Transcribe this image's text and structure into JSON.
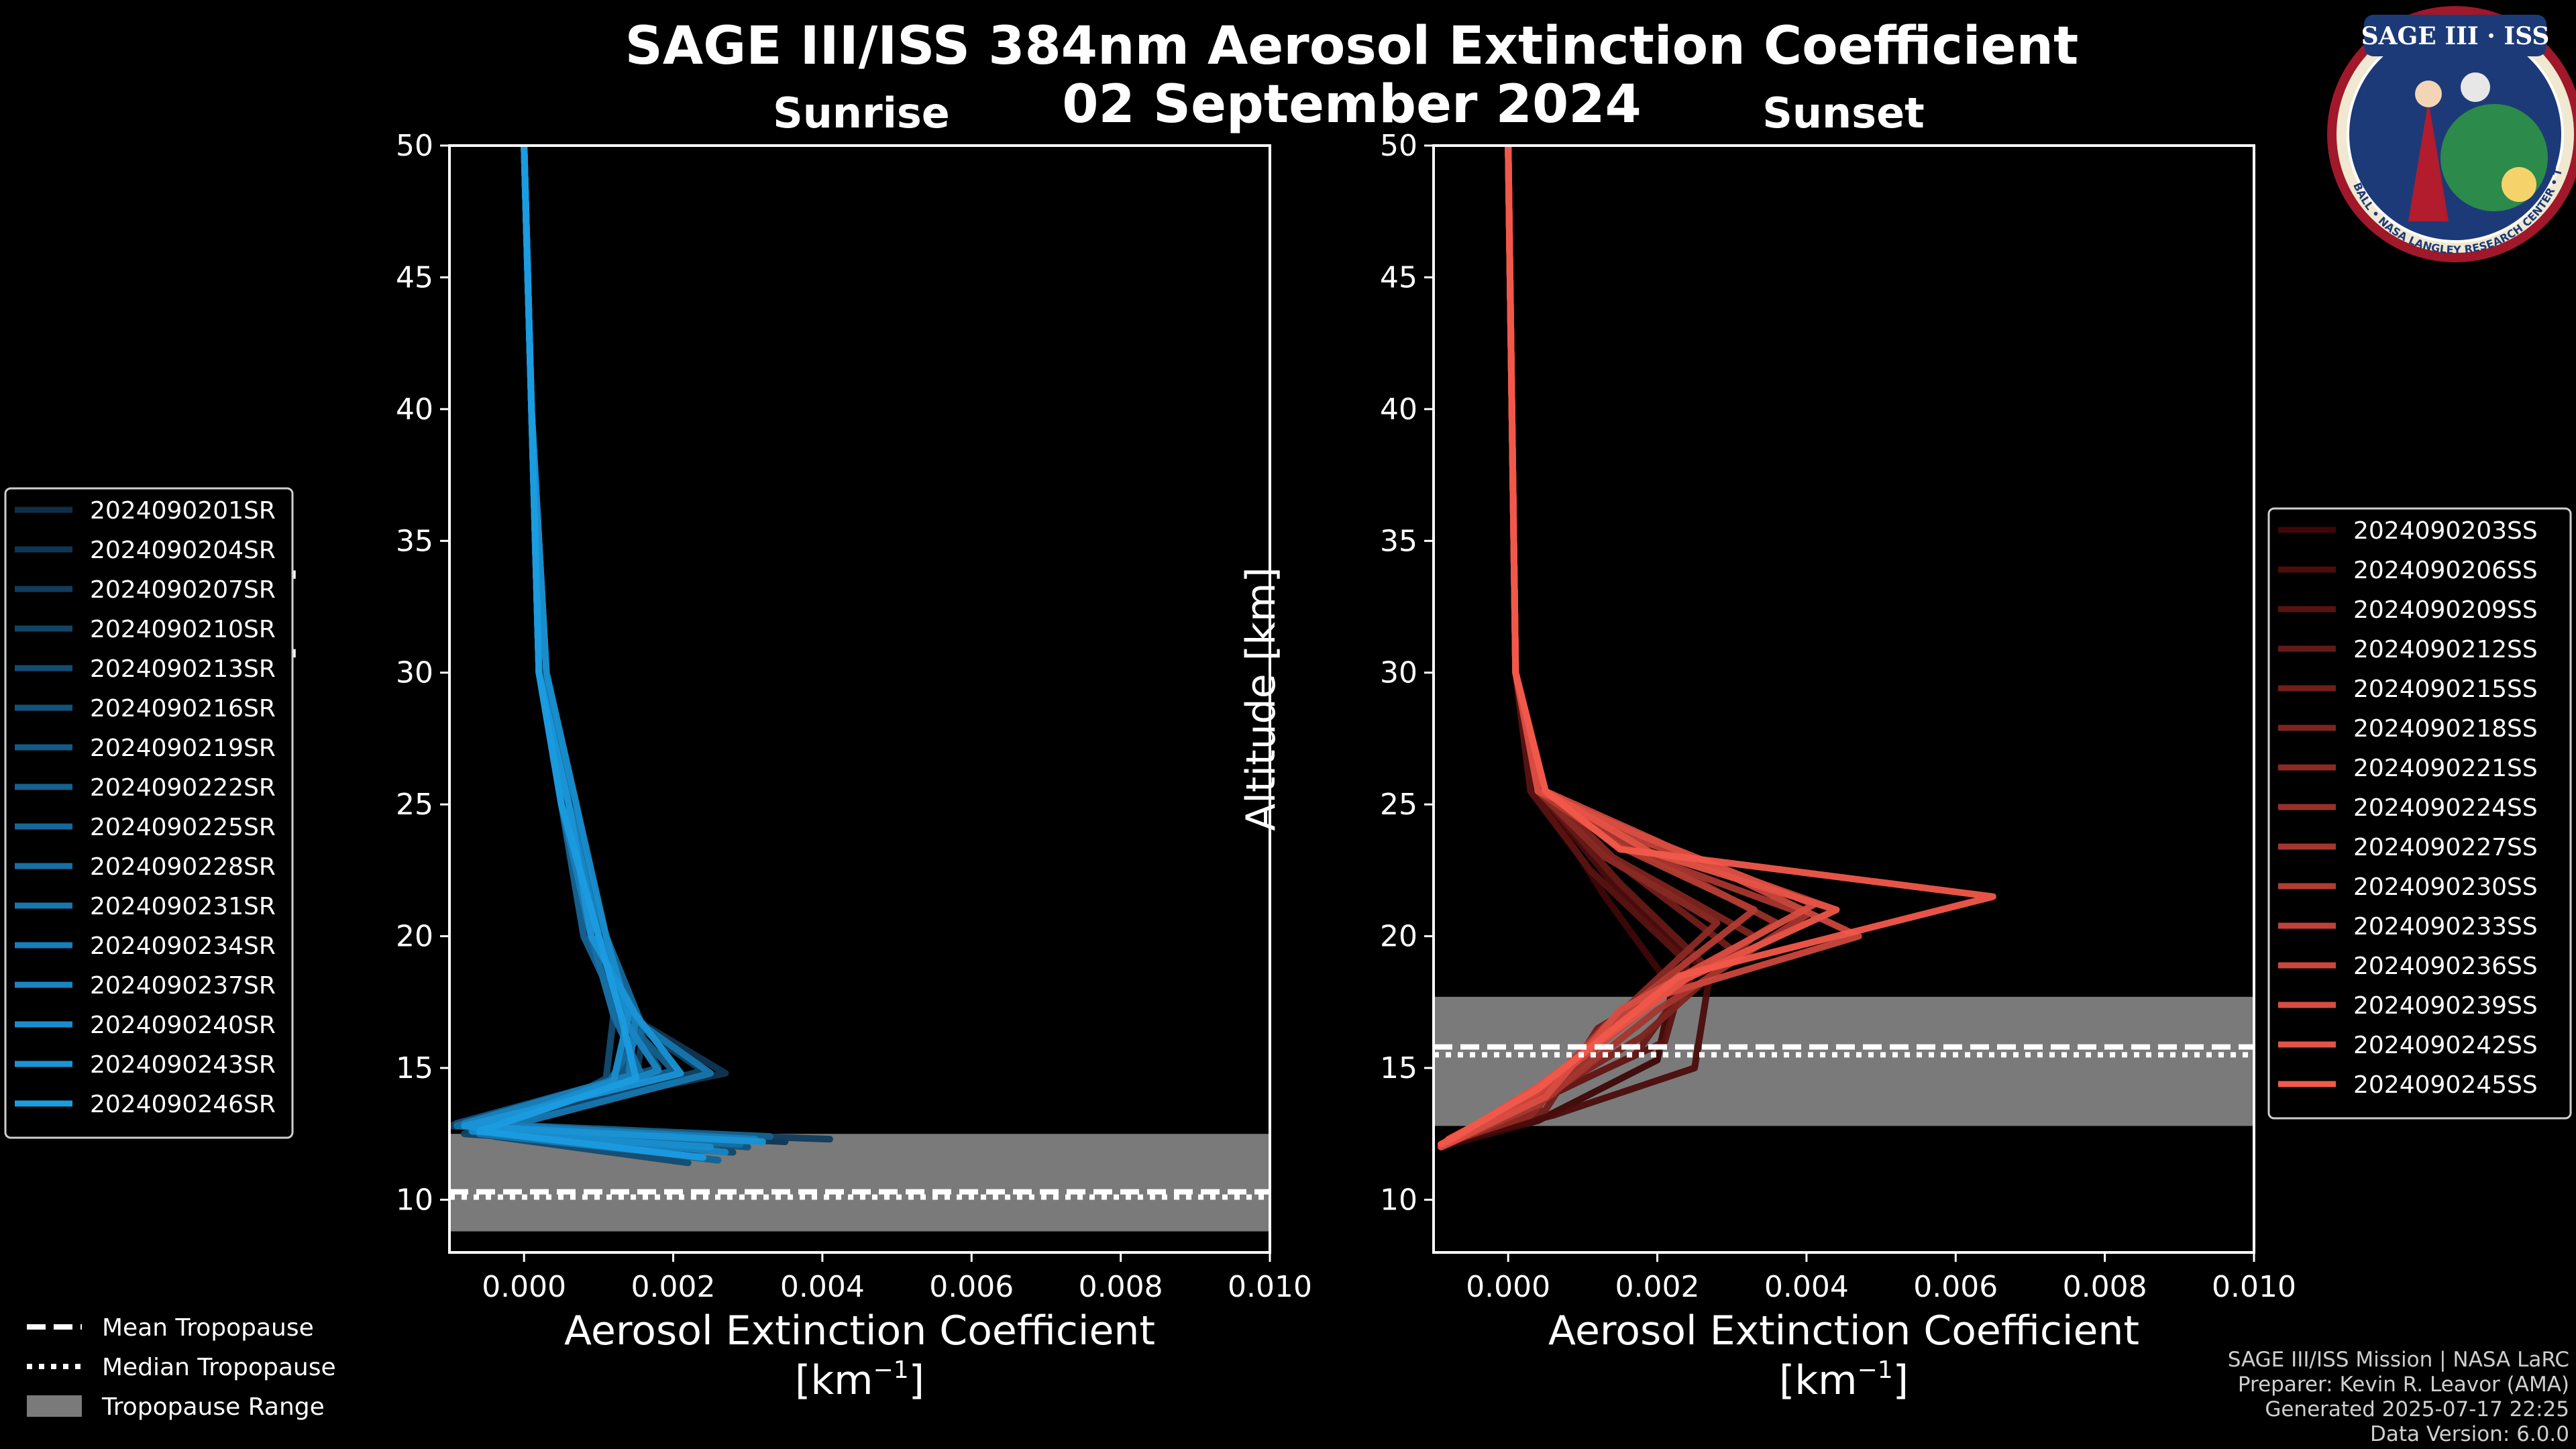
{
  "figure": {
    "title_line1": "SAGE III/ISS 384nm Aerosol Extinction Coefficient",
    "title_line2": "02 September 2024",
    "logo": {
      "top_text": "SAGE III · ISS",
      "ring_text": "BALL • NASA LANGLEY RESEARCH CENTER • TAS-I • ESA",
      "icon": "sage-iii-iss-mission-patch"
    },
    "credits": [
      "SAGE III/ISS Mission | NASA LaRC",
      "Preparer: Kevin R. Leavor (AMA)",
      "Generated 2025-07-17 22:25",
      "Data Version: 6.0.0"
    ],
    "tropopause_legend": [
      {
        "label": "Mean Tropopause",
        "style": "dashed"
      },
      {
        "label": "Median Tropopause",
        "style": "dotted"
      },
      {
        "label": "Tropopause Range",
        "style": "patch"
      }
    ]
  },
  "chart_data": [
    {
      "type": "line",
      "title": "Sunrise",
      "xlabel": "Aerosol Extinction Coefficient",
      "xunit": "[km",
      "xunit_exp": "−1",
      "xunit_close": "]",
      "ylabel": "Altitude [km]",
      "xlim": [
        -0.001,
        0.01
      ],
      "ylim": [
        8,
        50
      ],
      "xticks": [
        0.0,
        0.002,
        0.004,
        0.006,
        0.008,
        0.01
      ],
      "xtick_labels": [
        "0.000",
        "0.002",
        "0.004",
        "0.006",
        "0.008",
        "0.010"
      ],
      "yticks": [
        10,
        15,
        20,
        25,
        30,
        35,
        40,
        45,
        50
      ],
      "tropopause": {
        "min": 8.8,
        "max": 12.5,
        "mean": 10.3,
        "median": 10.1,
        "fill": "#7a7a7a"
      },
      "color_start": "#0f2f49",
      "color_end": "#1b9be0",
      "series": [
        {
          "name": "2024090201SR",
          "x": [
            0.0026,
            -0.0006,
            0.0012,
            0.0014,
            0.0009,
            0.0005,
            0.0002,
            0.0001,
            0.0
          ],
          "y": [
            11.5,
            12.6,
            14.5,
            17,
            20,
            25,
            30,
            40,
            50
          ]
        },
        {
          "name": "2024090204SR",
          "x": [
            0.0035,
            -0.0008,
            0.0027,
            0.0014,
            0.0009,
            0.0006,
            0.0002,
            0.0001,
            0.0
          ],
          "y": [
            12.2,
            12.8,
            14.8,
            17,
            20,
            25,
            30,
            40,
            50
          ]
        },
        {
          "name": "2024090207SR",
          "x": [
            0.0041,
            -0.001,
            0.0015,
            0.0016,
            0.001,
            0.0006,
            0.0002,
            0.0001,
            0.0
          ],
          "y": [
            12.3,
            12.8,
            14.5,
            16.5,
            20,
            25,
            30,
            40,
            50
          ]
        },
        {
          "name": "2024090210SR",
          "x": [
            0.0028,
            -0.0008,
            0.0024,
            0.0013,
            0.0008,
            0.0005,
            0.0002,
            0.0001,
            0.0
          ],
          "y": [
            11.8,
            12.5,
            14.9,
            17,
            20,
            25,
            30,
            40,
            50
          ]
        },
        {
          "name": "2024090213SR",
          "x": [
            0.0022,
            -0.0004,
            0.0011,
            0.0012,
            0.0009,
            0.0006,
            0.0002,
            0.0001,
            0.0
          ],
          "y": [
            11.4,
            12.4,
            14.6,
            17,
            20,
            25,
            30,
            40,
            50
          ]
        },
        {
          "name": "2024090216SR",
          "x": [
            0.003,
            -0.0009,
            0.0018,
            0.0014,
            0.001,
            0.0007,
            0.0003,
            0.0001,
            0.0
          ],
          "y": [
            12.0,
            12.9,
            15.0,
            17,
            20,
            25,
            30,
            40,
            50
          ]
        },
        {
          "name": "2024090219SR",
          "x": [
            0.0024,
            -0.0006,
            0.0013,
            0.0015,
            0.0009,
            0.0005,
            0.0002,
            0.0001,
            0.0
          ],
          "y": [
            11.6,
            12.7,
            14.7,
            17,
            20,
            25,
            30,
            40,
            50
          ]
        },
        {
          "name": "2024090222SR",
          "x": [
            0.0033,
            -0.0007,
            0.002,
            0.0013,
            0.0008,
            0.0005,
            0.0002,
            0.0001,
            0.0
          ],
          "y": [
            12.4,
            12.9,
            14.9,
            17,
            20,
            25,
            30,
            40,
            50
          ]
        },
        {
          "name": "2024090225SR",
          "x": [
            0.0026,
            -0.0005,
            0.0011,
            0.0016,
            0.0011,
            0.0006,
            0.0002,
            0.0001,
            0.0
          ],
          "y": [
            11.5,
            12.6,
            14.3,
            16.5,
            20,
            25,
            30,
            40,
            50
          ]
        },
        {
          "name": "2024090228SR",
          "x": [
            0.0029,
            -0.0009,
            0.0016,
            0.0012,
            0.0009,
            0.0006,
            0.0003,
            0.0001,
            0.0
          ],
          "y": [
            12.1,
            12.8,
            14.6,
            17,
            20,
            25,
            30,
            40,
            50
          ]
        },
        {
          "name": "2024090231SR",
          "x": [
            0.0021,
            -0.0006,
            0.0025,
            0.0014,
            0.001,
            0.0006,
            0.0002,
            0.0001,
            0.0
          ],
          "y": [
            11.7,
            12.5,
            14.8,
            17,
            20,
            25,
            30,
            40,
            50
          ]
        },
        {
          "name": "2024090234SR",
          "x": [
            0.0031,
            -0.0008,
            0.0014,
            0.0015,
            0.0009,
            0.0005,
            0.0002,
            0.0001,
            0.0
          ],
          "y": [
            12.3,
            12.9,
            14.7,
            17,
            20,
            25,
            30,
            40,
            50
          ]
        },
        {
          "name": "2024090237SR",
          "x": [
            0.0027,
            -0.0005,
            0.0018,
            0.0013,
            0.001,
            0.0006,
            0.0002,
            0.0001,
            0.0
          ],
          "y": [
            11.8,
            12.7,
            14.9,
            17,
            20,
            25,
            30,
            40,
            50
          ]
        },
        {
          "name": "2024090240SR",
          "x": [
            0.0025,
            -0.0007,
            0.0012,
            0.0014,
            0.0011,
            0.0007,
            0.0003,
            0.0001,
            0.0
          ],
          "y": [
            12.0,
            12.6,
            14.5,
            17,
            20,
            25,
            30,
            40,
            50
          ]
        },
        {
          "name": "2024090243SR",
          "x": [
            0.0032,
            -0.0008,
            0.0021,
            0.0015,
            0.0009,
            0.0006,
            0.0002,
            0.0001,
            0.0
          ],
          "y": [
            12.2,
            12.8,
            14.8,
            17,
            20,
            25,
            30,
            40,
            50
          ]
        },
        {
          "name": "2024090246SR",
          "x": [
            0.0024,
            -0.0006,
            0.0015,
            0.0013,
            0.001,
            0.0005,
            0.0002,
            0.0001,
            0.0
          ],
          "y": [
            11.6,
            12.6,
            14.6,
            17,
            20,
            25,
            30,
            40,
            50
          ]
        }
      ]
    },
    {
      "type": "line",
      "title": "Sunset",
      "xlabel": "Aerosol Extinction Coefficient",
      "xunit": "[km",
      "xunit_exp": "−1",
      "xunit_close": "]",
      "ylabel": "Altitude [km]",
      "xlim": [
        -0.001,
        0.01
      ],
      "ylim": [
        8,
        50
      ],
      "xticks": [
        0.0,
        0.002,
        0.004,
        0.006,
        0.008,
        0.01
      ],
      "xtick_labels": [
        "0.000",
        "0.002",
        "0.004",
        "0.006",
        "0.008",
        "0.010"
      ],
      "yticks": [
        10,
        15,
        20,
        25,
        30,
        35,
        40,
        45,
        50
      ],
      "tropopause": {
        "min": 12.8,
        "max": 17.7,
        "mean": 15.8,
        "median": 15.5,
        "fill": "#7a7a7a"
      },
      "color_start": "#3e0707",
      "color_end": "#f2594b",
      "series": [
        {
          "name": "2024090203SS",
          "x": [
            -0.0009,
            0.0004,
            0.002,
            0.0022,
            0.0013,
            0.0004,
            0.0001,
            0.0
          ],
          "y": [
            12.0,
            13.0,
            15.3,
            18.0,
            21.5,
            25.5,
            30,
            50
          ]
        },
        {
          "name": "2024090206SS",
          "x": [
            -0.0008,
            0.0006,
            0.0025,
            0.0027,
            0.0014,
            0.0004,
            0.0001,
            0.0
          ],
          "y": [
            12.2,
            13.2,
            15.0,
            18.5,
            22.0,
            25.5,
            30,
            50
          ]
        },
        {
          "name": "2024090209SS",
          "x": [
            -0.0009,
            0.0002,
            0.0021,
            0.0024,
            0.0011,
            0.0003,
            0.0001,
            0.0
          ],
          "y": [
            12.0,
            13.5,
            16.0,
            19.0,
            22.5,
            25.5,
            30,
            50
          ]
        },
        {
          "name": "2024090212SS",
          "x": [
            -0.0008,
            0.0003,
            0.0017,
            0.0026,
            0.0015,
            0.0004,
            0.0001,
            0.0
          ],
          "y": [
            12.3,
            13.6,
            15.5,
            19.0,
            22.0,
            25.5,
            30,
            50
          ]
        },
        {
          "name": "2024090215SS",
          "x": [
            -0.0009,
            0.0005,
            0.0012,
            0.003,
            0.0016,
            0.0004,
            0.0001,
            0.0
          ],
          "y": [
            12.1,
            13.4,
            16.5,
            19.5,
            22.5,
            25.5,
            30,
            50
          ]
        },
        {
          "name": "2024090218SS",
          "x": [
            -0.0007,
            0.0004,
            0.0018,
            0.0033,
            0.0014,
            0.0005,
            0.0001,
            0.0
          ],
          "y": [
            12.4,
            13.8,
            16.2,
            20.0,
            23.0,
            25.5,
            30,
            50
          ]
        },
        {
          "name": "2024090221SS",
          "x": [
            -0.0009,
            0.0003,
            0.0014,
            0.0028,
            0.0013,
            0.0004,
            0.0001,
            0.0
          ],
          "y": [
            12.1,
            13.2,
            16.8,
            20.5,
            23.0,
            25.5,
            30,
            50
          ]
        },
        {
          "name": "2024090224SS",
          "x": [
            -0.0008,
            0.0006,
            0.0016,
            0.0036,
            0.0018,
            0.0005,
            0.0001,
            0.0
          ],
          "y": [
            12.3,
            14.0,
            17.0,
            20.5,
            23.2,
            25.5,
            30,
            50
          ]
        },
        {
          "name": "2024090227SS",
          "x": [
            -0.0009,
            0.0004,
            0.002,
            0.004,
            0.0017,
            0.0005,
            0.0001,
            0.0
          ],
          "y": [
            12.0,
            13.6,
            17.2,
            20.8,
            23.2,
            25.5,
            30,
            50
          ]
        },
        {
          "name": "2024090230SS",
          "x": [
            -0.0008,
            0.0005,
            0.0013,
            0.0033,
            0.0015,
            0.0004,
            0.0001,
            0.0
          ],
          "y": [
            12.2,
            14.2,
            16.6,
            21.0,
            23.4,
            25.5,
            30,
            50
          ]
        },
        {
          "name": "2024090233SS",
          "x": [
            -0.0009,
            0.0003,
            0.0017,
            0.0044,
            0.0019,
            0.0005,
            0.0001,
            0.0
          ],
          "y": [
            12.1,
            13.7,
            17.5,
            21.0,
            23.5,
            25.5,
            30,
            50
          ]
        },
        {
          "name": "2024090236SS",
          "x": [
            -0.0008,
            0.0004,
            0.0021,
            0.0047,
            0.002,
            0.0005,
            0.0001,
            0.0
          ],
          "y": [
            12.3,
            14.1,
            17.8,
            20.0,
            23.6,
            25.5,
            30,
            50
          ]
        },
        {
          "name": "2024090239SS",
          "x": [
            -0.0009,
            0.0005,
            0.0015,
            0.0041,
            0.0018,
            0.0004,
            0.0001,
            0.0
          ],
          "y": [
            12.0,
            13.9,
            17.2,
            21.2,
            23.8,
            25.5,
            30,
            50
          ]
        },
        {
          "name": "2024090242SS",
          "x": [
            -0.0008,
            0.0004,
            0.0024,
            0.0044,
            0.0019,
            0.0005,
            0.0001,
            0.0
          ],
          "y": [
            12.2,
            14.3,
            18.4,
            21.0,
            23.2,
            25.5,
            30,
            50
          ]
        },
        {
          "name": "2024090245SS",
          "x": [
            -0.0009,
            0.0004,
            0.0023,
            0.0065,
            0.0015,
            0.0005,
            0.0001,
            0.0
          ],
          "y": [
            12.1,
            14.2,
            18.5,
            21.5,
            23.3,
            25.5,
            30,
            50
          ]
        }
      ]
    }
  ]
}
